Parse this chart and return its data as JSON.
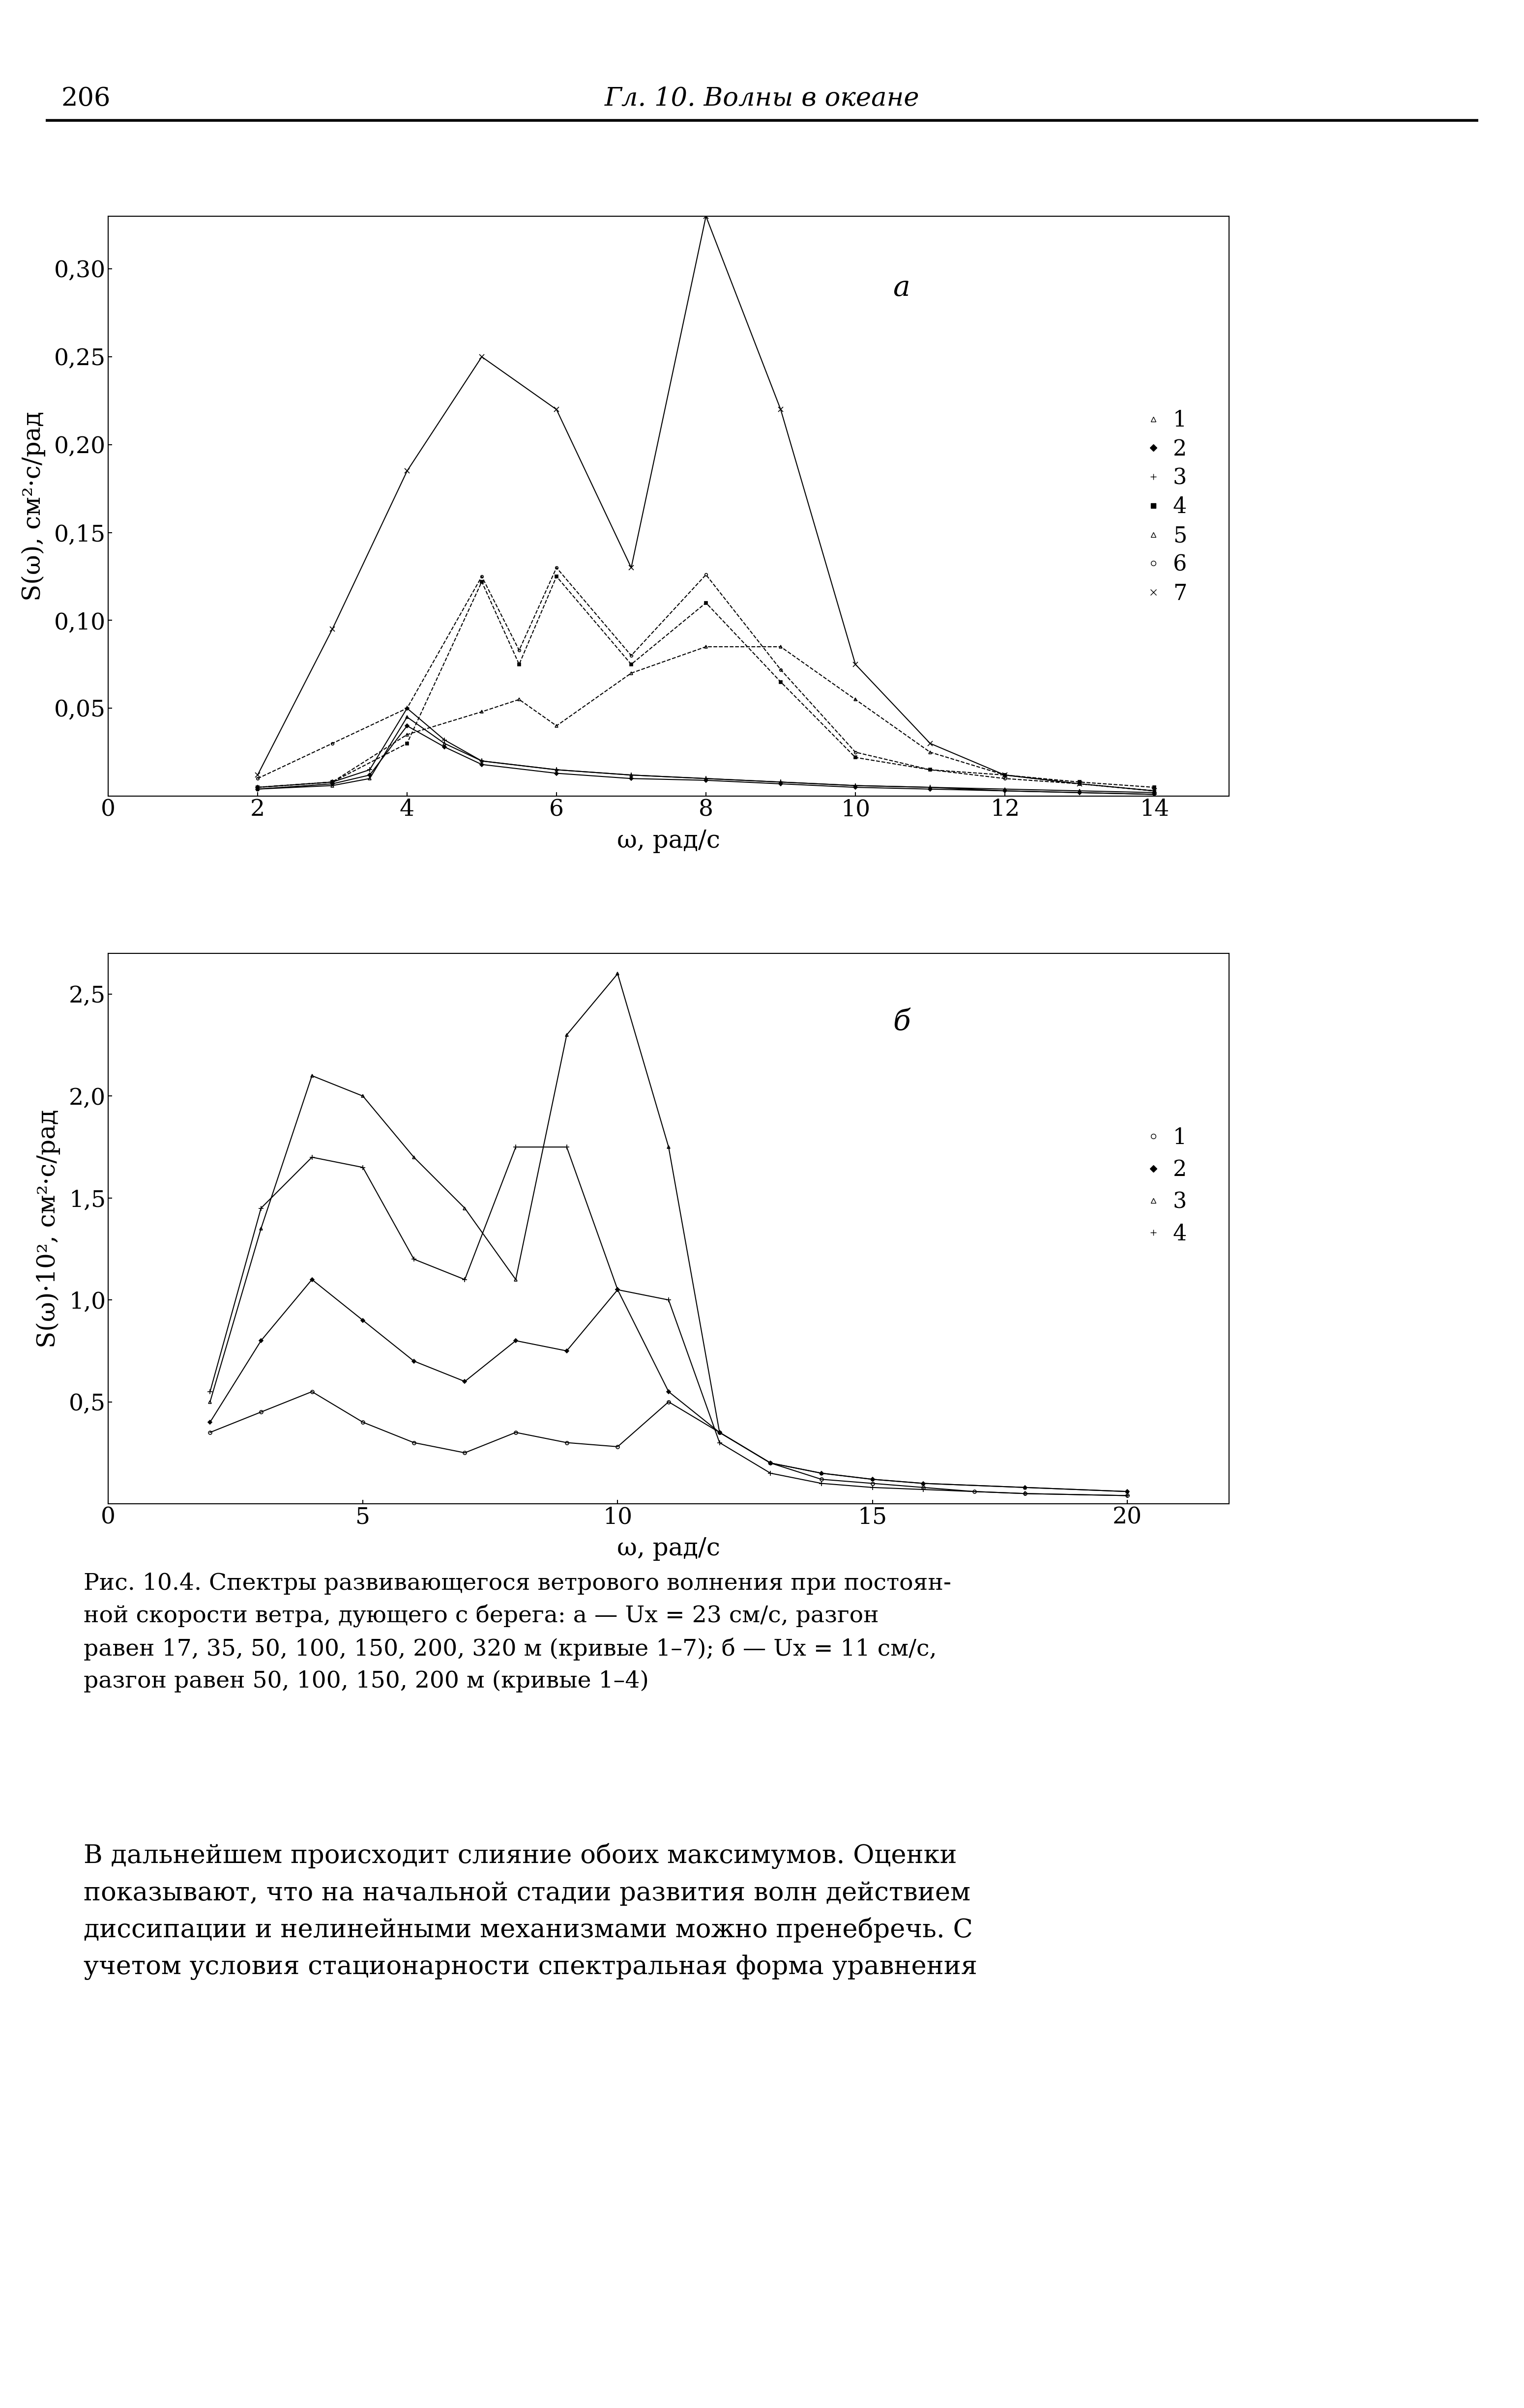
{
  "page_number": "206",
  "header_title": "Гл. 10. Волны в океане",
  "fig_label_a": "а",
  "fig_label_b": "б",
  "xlabel": "ω, рад/с",
  "ylabel_a": "S(ω), см²·с/рад",
  "ylabel_b": "S(ω)·10², см²·с/рад",
  "caption_line1": "Рис. 10.4. Спектры развивающегося ветрового волнения при постоян-",
  "caption_line2": "ной скорости ветра, дующего с берега: а — Ux = 23 см/с, разгон",
  "caption_line3": "равен 17, 35, 50, 100, 150, 200, 320 м (кривые 1–7); б — Ux = 11 см/с,",
  "caption_line4": "разгон равен 50, 100, 150, 200 м (кривые 1–4)",
  "body_line1": "В дальнейшем происходит слияние обоих максимумов. Оценки",
  "body_line2": "показывают, что на начальной стадии развития волн действием",
  "body_line3": "диссипации и нелинейными механизмами можно пренебречь. С",
  "body_line4": "учетом условия стационарности спектральная форма уравнения",
  "plot_a": {
    "xlim": [
      0,
      15
    ],
    "ylim": [
      0,
      0.33
    ],
    "xticks": [
      0,
      2,
      4,
      6,
      8,
      10,
      12,
      14
    ],
    "yticks": [
      0.05,
      0.1,
      0.15,
      0.2,
      0.25,
      0.3
    ],
    "curves": [
      {
        "id": 1,
        "marker": "^",
        "markersize": 5,
        "linestyle": "-",
        "color": "#000000",
        "x": [
          2,
          3,
          3.5,
          4,
          4.5,
          5,
          6,
          7,
          8,
          9,
          10,
          11,
          12,
          13,
          14
        ],
        "y": [
          0.004,
          0.006,
          0.01,
          0.045,
          0.03,
          0.02,
          0.015,
          0.012,
          0.01,
          0.008,
          0.006,
          0.005,
          0.004,
          0.003,
          0.002
        ]
      },
      {
        "id": 2,
        "marker": "D",
        "markersize": 4,
        "linestyle": "-",
        "color": "#000000",
        "x": [
          2,
          3,
          3.5,
          4,
          4.5,
          5,
          6,
          7,
          8,
          9,
          10,
          11,
          12,
          13,
          14
        ],
        "y": [
          0.004,
          0.007,
          0.012,
          0.04,
          0.028,
          0.018,
          0.013,
          0.01,
          0.009,
          0.007,
          0.005,
          0.004,
          0.003,
          0.002,
          0.001
        ]
      },
      {
        "id": 3,
        "marker": "+",
        "markersize": 7,
        "linestyle": "-",
        "color": "#000000",
        "x": [
          2,
          3,
          3.5,
          4,
          4.5,
          5,
          6,
          7,
          8,
          9,
          10,
          11,
          12,
          13,
          14
        ],
        "y": [
          0.005,
          0.008,
          0.015,
          0.05,
          0.032,
          0.02,
          0.015,
          0.012,
          0.01,
          0.008,
          0.006,
          0.005,
          0.003,
          0.002,
          0.001
        ]
      },
      {
        "id": 4,
        "marker": "s",
        "markersize": 4,
        "linestyle": "--",
        "color": "#000000",
        "x": [
          2,
          3,
          4,
          5,
          5.5,
          6,
          7,
          8,
          9,
          10,
          11,
          12,
          13,
          14
        ],
        "y": [
          0.005,
          0.008,
          0.03,
          0.122,
          0.075,
          0.125,
          0.075,
          0.11,
          0.065,
          0.022,
          0.015,
          0.012,
          0.008,
          0.005
        ]
      },
      {
        "id": 5,
        "marker": "^",
        "markersize": 5,
        "linestyle": "--",
        "color": "#000000",
        "x": [
          2,
          3,
          4,
          5,
          5.5,
          6,
          7,
          8,
          9,
          10,
          11,
          12,
          13,
          14
        ],
        "y": [
          0.005,
          0.008,
          0.035,
          0.048,
          0.055,
          0.04,
          0.07,
          0.085,
          0.085,
          0.055,
          0.025,
          0.012,
          0.007,
          0.003
        ]
      },
      {
        "id": 6,
        "marker": "o",
        "markersize": 4,
        "linestyle": "--",
        "color": "#000000",
        "x": [
          2,
          3,
          4,
          5,
          5.5,
          6,
          7,
          8,
          9,
          10,
          11,
          12,
          13,
          14
        ],
        "y": [
          0.01,
          0.03,
          0.05,
          0.125,
          0.083,
          0.13,
          0.08,
          0.126,
          0.072,
          0.025,
          0.015,
          0.01,
          0.007,
          0.003
        ]
      },
      {
        "id": 7,
        "marker": "x",
        "markersize": 7,
        "linestyle": "-",
        "color": "#000000",
        "x": [
          2,
          3,
          4,
          5,
          6,
          7,
          8,
          9,
          10,
          11,
          12,
          13,
          14
        ],
        "y": [
          0.012,
          0.095,
          0.185,
          0.25,
          0.22,
          0.13,
          0.33,
          0.22,
          0.075,
          0.03,
          0.012,
          0.007,
          0.003
        ]
      }
    ],
    "legend": [
      {
        "marker": "^",
        "linestyle": "-",
        "label": "1"
      },
      {
        "marker": "D",
        "linestyle": "-",
        "label": "2"
      },
      {
        "marker": "+",
        "linestyle": "-",
        "label": "3"
      },
      {
        "marker": "s",
        "linestyle": "--",
        "label": "4"
      },
      {
        "marker": "^",
        "linestyle": "--",
        "label": "5"
      },
      {
        "marker": "o",
        "linestyle": "--",
        "label": "6"
      },
      {
        "marker": "x",
        "linestyle": "-",
        "label": "7"
      }
    ]
  },
  "plot_b": {
    "xlim": [
      0,
      22
    ],
    "ylim": [
      0,
      2.7
    ],
    "xticks": [
      0,
      5,
      10,
      15,
      20
    ],
    "yticks": [
      0.5,
      1.0,
      1.5,
      2.0,
      2.5
    ],
    "curves": [
      {
        "id": 1,
        "marker": "o",
        "markersize": 5,
        "linestyle": "-",
        "color": "#000000",
        "x": [
          2,
          3,
          4,
          5,
          6,
          7,
          8,
          9,
          10,
          11,
          12,
          13,
          14,
          15,
          16,
          17,
          18,
          20
        ],
        "y": [
          0.35,
          0.45,
          0.55,
          0.4,
          0.3,
          0.25,
          0.35,
          0.3,
          0.28,
          0.5,
          0.35,
          0.2,
          0.12,
          0.1,
          0.08,
          0.06,
          0.05,
          0.04
        ]
      },
      {
        "id": 2,
        "marker": "D",
        "markersize": 4,
        "linestyle": "-",
        "color": "#000000",
        "x": [
          2,
          3,
          4,
          5,
          6,
          7,
          8,
          9,
          10,
          11,
          12,
          13,
          14,
          15,
          16,
          18,
          20
        ],
        "y": [
          0.4,
          0.8,
          1.1,
          0.9,
          0.7,
          0.6,
          0.8,
          0.75,
          1.05,
          0.55,
          0.35,
          0.2,
          0.15,
          0.12,
          0.1,
          0.08,
          0.06
        ]
      },
      {
        "id": 3,
        "marker": "^",
        "markersize": 5,
        "linestyle": "-",
        "color": "#000000",
        "x": [
          2,
          3,
          4,
          5,
          6,
          7,
          8,
          9,
          10,
          11,
          12,
          13,
          14,
          15,
          16,
          18,
          20
        ],
        "y": [
          0.5,
          1.35,
          2.1,
          2.0,
          1.7,
          1.45,
          1.1,
          2.3,
          2.6,
          1.75,
          0.35,
          0.2,
          0.15,
          0.12,
          0.1,
          0.08,
          0.06
        ]
      },
      {
        "id": 4,
        "marker": "+",
        "markersize": 7,
        "linestyle": "-",
        "color": "#000000",
        "x": [
          2,
          3,
          4,
          5,
          6,
          7,
          8,
          9,
          10,
          11,
          12,
          13,
          14,
          15,
          16,
          18,
          20
        ],
        "y": [
          0.55,
          1.45,
          1.7,
          1.65,
          1.2,
          1.1,
          1.75,
          1.75,
          1.05,
          1.0,
          0.3,
          0.15,
          0.1,
          0.08,
          0.07,
          0.05,
          0.04
        ]
      }
    ],
    "legend": [
      {
        "marker": "o",
        "linestyle": "-",
        "label": "1"
      },
      {
        "marker": "D",
        "linestyle": "-",
        "label": "2"
      },
      {
        "marker": "^",
        "linestyle": "-",
        "label": "3"
      },
      {
        "marker": "+",
        "linestyle": "-",
        "label": "4"
      }
    ]
  },
  "background_color": "#ffffff",
  "text_color": "#000000"
}
